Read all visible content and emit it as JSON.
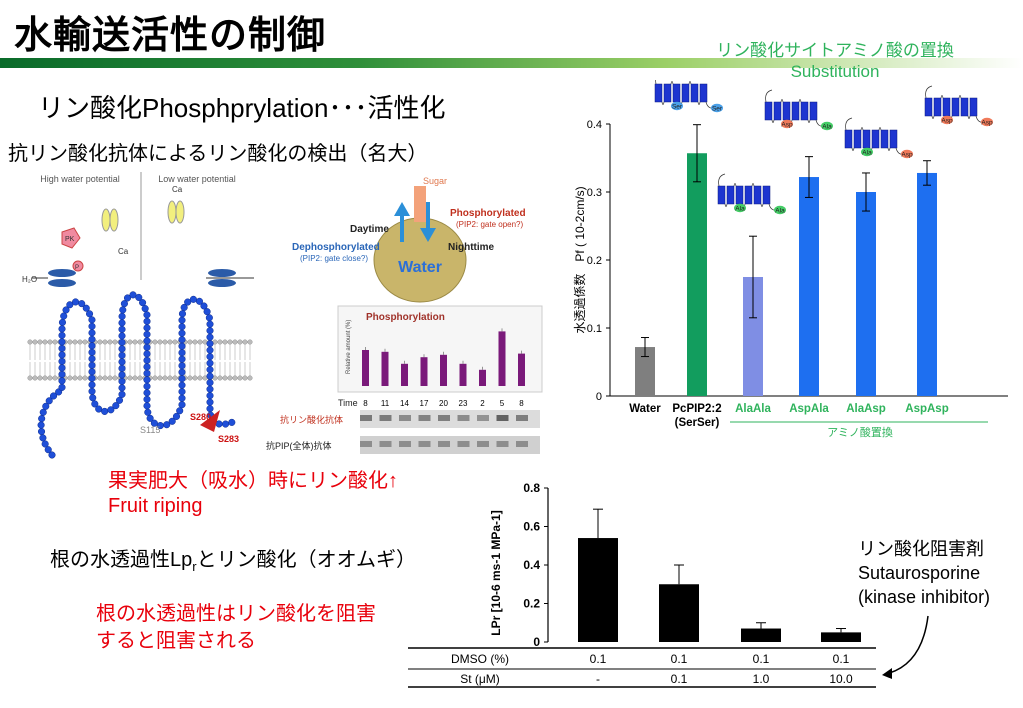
{
  "slide": {
    "title": "水輸送活性の制御",
    "subtitle": "リン酸化Phosphprylation･･･活性化",
    "detection_heading": "抗リン酸化抗体によるリン酸化の検出（名大）",
    "fruit_line1": "果実肥大（吸水）時にリン酸化↑",
    "fruit_line2": "Fruit riping",
    "root_text": "根の水透過性Lp",
    "root_text_sub": "r",
    "root_text_tail": "とリン酸化（オオムギ）",
    "root_inhibit_line1": "根の水透過性はリン酸化を阻害",
    "root_inhibit_line2": "すると阻害される",
    "inhibitor_line1": "リン酸化阻害剤",
    "inhibitor_line2": "Sutaurosporine",
    "inhibitor_line3": "(kinase inhibitor)"
  },
  "membrane_diagram": {
    "high_label": "High water potential",
    "low_label": "Low water potential",
    "ca_label": "Ca",
    "ca_label2": "Ca",
    "pk_label": "PK",
    "p_label": "P",
    "h2o_label": "H₂O",
    "s115": "S115",
    "s280": "S280",
    "s283": "S283"
  },
  "fruit_diagram": {
    "sugar": "Sugar",
    "daytime": "Daytime",
    "nighttime": "Nighttime",
    "phosphorylated": "Phosphorylated",
    "phos_note": "(PIP2: gate open?)",
    "dephosphorylated": "Dephosphorylated",
    "dephos_note": "(PIP2: gate close?)",
    "water": "Water"
  },
  "phospho_blot": {
    "title": "Phosphorylation",
    "ylabel": "Relative amount (%)",
    "time_label": "Time",
    "anti_phospho_label": "抗リン酸化抗体",
    "anti_pip_label": "抗PIP(全体)抗体"
  },
  "chart_data": [
    {
      "type": "bar",
      "ylabel": "水透過係数　Pf ( 10-2cm/s)",
      "ylim": [
        0,
        0.4
      ],
      "yticks": [
        "0",
        "0.1",
        "0.2",
        "0.3",
        "0.4"
      ],
      "categories": [
        "Water",
        "PcPIP2:2\n(SerSer)",
        "AlaAla",
        "AspAla",
        "AlaAsp",
        "AspAsp"
      ],
      "values": [
        0.072,
        0.357,
        0.175,
        0.322,
        0.3,
        0.328
      ],
      "errors": [
        0.014,
        0.042,
        0.06,
        0.03,
        0.028,
        0.018
      ],
      "colors": [
        "#7f7f7f",
        "#129d5e",
        "#7f8ee4",
        "#1e6ff0",
        "#1e6ff0",
        "#1e6ff0"
      ],
      "group_label": "アミノ酸置換",
      "substitution_title_line1": "リン酸化サイトアミノ酸の置換",
      "substitution_title_line2": "Substitution",
      "site_labels": [
        "Ser",
        "Ser",
        "Ala",
        "Ala",
        "Asp",
        "Ala",
        "Ala",
        "Asp",
        "Asp",
        "Asp"
      ]
    },
    {
      "type": "bar",
      "ylabel": "LPr  [10-6 ms-1 MPa-1]",
      "ylim": [
        0,
        0.8
      ],
      "yticks": [
        "0",
        "0.2",
        "0.4",
        "0.6",
        "0.8"
      ],
      "values": [
        0.54,
        0.3,
        0.07,
        0.05
      ],
      "errors": [
        0.15,
        0.1,
        0.03,
        0.02
      ],
      "table": {
        "row1_label": "DMSO (%)",
        "row1": [
          "0.1",
          "0.1",
          "0.1",
          "0.1"
        ],
        "row2_label": "St (μM)",
        "row2": [
          "-",
          "0.1",
          "1.0",
          "10.0"
        ]
      }
    },
    {
      "type": "bar",
      "title": "Phosphorylation",
      "ylabel": "Relative amount (%)",
      "xlabel": "Time",
      "categories": [
        "8",
        "11",
        "14",
        "17",
        "20",
        "23",
        "2",
        "5",
        "8"
      ],
      "values": [
        60,
        57,
        37,
        48,
        52,
        37,
        27,
        91,
        54
      ]
    }
  ]
}
